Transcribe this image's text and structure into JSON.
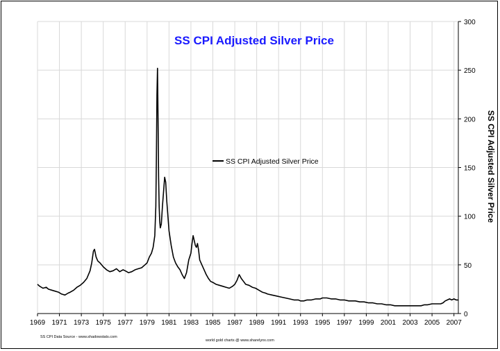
{
  "chart_data": {
    "type": "line",
    "title": "SS CPI Adjusted Silver Price",
    "ylabel": "SS CPI Adjusted Silver Price",
    "xlabel": "",
    "xlim": [
      1969,
      2007.4
    ],
    "ylim": [
      0,
      300
    ],
    "yticks": [
      0,
      50,
      100,
      150,
      200,
      250,
      300
    ],
    "xtick_labels": [
      "1969",
      "1971",
      "1973",
      "1975",
      "1977",
      "1979",
      "1981",
      "1983",
      "1985",
      "1987",
      "1989",
      "1991",
      "1993",
      "1995",
      "1997",
      "1999",
      "2001",
      "2003",
      "2005",
      "2007"
    ],
    "legend": {
      "label": "SS CPI Adjusted Silver Price",
      "position": "center"
    },
    "grid": true,
    "series": [
      {
        "name": "SS CPI Adjusted Silver Price",
        "color": "#000000",
        "x": [
          1969.0,
          1969.2,
          1969.5,
          1969.8,
          1970.0,
          1970.3,
          1970.6,
          1970.9,
          1971.2,
          1971.5,
          1971.8,
          1972.0,
          1972.3,
          1972.6,
          1972.9,
          1973.2,
          1973.5,
          1973.8,
          1973.95,
          1974.1,
          1974.2,
          1974.35,
          1974.5,
          1974.7,
          1975.0,
          1975.3,
          1975.6,
          1975.9,
          1976.2,
          1976.5,
          1976.8,
          1977.0,
          1977.3,
          1977.6,
          1977.9,
          1978.2,
          1978.5,
          1978.8,
          1979.0,
          1979.2,
          1979.4,
          1979.55,
          1979.7,
          1979.8,
          1979.85,
          1979.9,
          1979.95,
          1980.0,
          1980.05,
          1980.1,
          1980.15,
          1980.2,
          1980.3,
          1980.4,
          1980.5,
          1980.6,
          1980.7,
          1980.8,
          1980.9,
          1981.0,
          1981.2,
          1981.4,
          1981.6,
          1981.8,
          1982.0,
          1982.2,
          1982.4,
          1982.6,
          1982.8,
          1983.0,
          1983.1,
          1983.2,
          1983.3,
          1983.4,
          1983.5,
          1983.6,
          1983.7,
          1983.8,
          1984.0,
          1984.2,
          1984.4,
          1984.6,
          1984.8,
          1985.0,
          1985.3,
          1985.6,
          1985.9,
          1986.2,
          1986.5,
          1986.8,
          1987.0,
          1987.2,
          1987.3,
          1987.4,
          1987.5,
          1987.6,
          1987.8,
          1988.0,
          1988.3,
          1988.6,
          1988.9,
          1989.2,
          1989.5,
          1989.8,
          1990.0,
          1990.4,
          1990.8,
          1991.2,
          1991.6,
          1992.0,
          1992.4,
          1992.8,
          1993.0,
          1993.3,
          1993.6,
          1994.0,
          1994.4,
          1994.8,
          1995.0,
          1995.4,
          1995.8,
          1996.2,
          1996.6,
          1997.0,
          1997.4,
          1997.8,
          1998.0,
          1998.4,
          1998.8,
          1999.2,
          1999.6,
          2000.0,
          2000.4,
          2000.8,
          2001.2,
          2001.6,
          2002.0,
          2002.4,
          2002.8,
          2003.2,
          2003.6,
          2004.0,
          2004.3,
          2004.6,
          2005.0,
          2005.4,
          2005.8,
          2006.0,
          2006.2,
          2006.4,
          2006.6,
          2006.8,
          2007.0,
          2007.2,
          2007.4
        ],
        "values": [
          30,
          28,
          26,
          27,
          25,
          24,
          23,
          22,
          20,
          19,
          21,
          22,
          24,
          27,
          29,
          32,
          36,
          44,
          52,
          64,
          66,
          58,
          54,
          52,
          48,
          45,
          43,
          44,
          46,
          43,
          45,
          44,
          42,
          43,
          45,
          46,
          47,
          50,
          52,
          58,
          62,
          68,
          80,
          110,
          160,
          225,
          252,
          200,
          140,
          110,
          95,
          88,
          92,
          110,
          125,
          140,
          135,
          115,
          100,
          85,
          70,
          58,
          52,
          48,
          45,
          40,
          36,
          42,
          55,
          62,
          72,
          80,
          75,
          70,
          68,
          72,
          65,
          55,
          50,
          45,
          40,
          36,
          33,
          32,
          30,
          29,
          28,
          27,
          26,
          28,
          30,
          34,
          37,
          40,
          38,
          36,
          33,
          30,
          29,
          27,
          26,
          24,
          22,
          21,
          20,
          19,
          18,
          17,
          16,
          15,
          14,
          14,
          13,
          13,
          14,
          14,
          15,
          15,
          16,
          16,
          15,
          15,
          14,
          14,
          13,
          13,
          13,
          12,
          12,
          11,
          11,
          10,
          10,
          9,
          9,
          8,
          8,
          8,
          8,
          8,
          8,
          8,
          9,
          9,
          10,
          10,
          10,
          11,
          13,
          14,
          15,
          14,
          15,
          14,
          14
        ]
      }
    ]
  },
  "footer": {
    "left": "SS CPI Data Source - www.shadowstats.com",
    "center": "world gold charts @ www.sharelynx.com"
  }
}
